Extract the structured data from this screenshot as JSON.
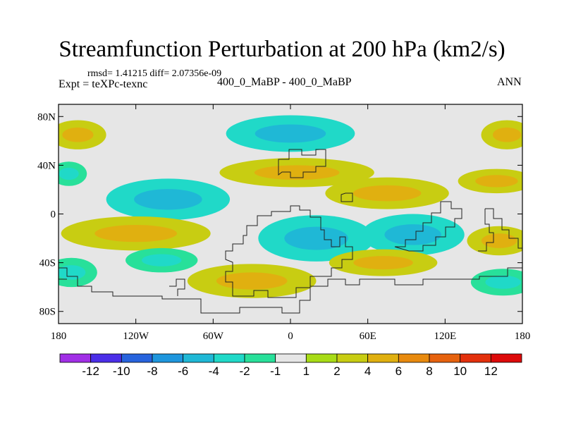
{
  "header": {
    "title": "Streamfunction Perturbation at 200 hPa (km2/s)",
    "stats": "rmsd= 1.41215 diff= 2.07356e-09",
    "expt": "Expt = teXPc-texnc",
    "case": "400_0_MaBP - 400_0_MaBP",
    "period": "ANN"
  },
  "chart_data": {
    "type": "heatmap",
    "title": "Streamfunction Perturbation at 200 hPa (km2/s)",
    "xlabel": "",
    "ylabel": "",
    "xlim": [
      -180,
      180
    ],
    "ylim": [
      -90,
      90
    ],
    "x_ticks": [
      {
        "value": -180,
        "label": "180"
      },
      {
        "value": -120,
        "label": "120W"
      },
      {
        "value": -60,
        "label": "60W"
      },
      {
        "value": 0,
        "label": "0"
      },
      {
        "value": 60,
        "label": "60E"
      },
      {
        "value": 120,
        "label": "120E"
      },
      {
        "value": 180,
        "label": "180"
      }
    ],
    "y_ticks": [
      {
        "value": 80,
        "label": "80N"
      },
      {
        "value": 40,
        "label": "40N"
      },
      {
        "value": 0,
        "label": "0"
      },
      {
        "value": -40,
        "label": "40S"
      },
      {
        "value": -80,
        "label": "80S"
      }
    ],
    "colorbar": {
      "levels": [
        "-12",
        "-10",
        "-8",
        "-6",
        "-4",
        "-2",
        "-1",
        "1",
        "2",
        "4",
        "6",
        "8",
        "10",
        "12"
      ],
      "colors": [
        "#a12fe6",
        "#4b2ee8",
        "#2763dd",
        "#1e96dd",
        "#1fb8d6",
        "#20d9c8",
        "#28e09a",
        "#e6e6e6",
        "#a8dc16",
        "#c8cd12",
        "#e0b010",
        "#e88a0e",
        "#e6620e",
        "#e3300c",
        "#dd0a0a"
      ]
    },
    "regions": [
      {
        "name": "positive-n-pacific-east",
        "value": 3,
        "lon": -165,
        "lat": 65,
        "rlon": 22,
        "rlat": 12
      },
      {
        "name": "negative-n-atlantic-high",
        "value": -3,
        "lon": 0,
        "lat": 66,
        "rlon": 50,
        "rlat": 15
      },
      {
        "name": "positive-n-pacific-west",
        "value": 3,
        "lon": 168,
        "lat": 65,
        "rlon": 20,
        "rlat": 12
      },
      {
        "name": "positive-eurasia-midlat",
        "value": 2,
        "lon": 5,
        "lat": 34,
        "rlon": 60,
        "rlat": 12
      },
      {
        "name": "positive-central-asia",
        "value": 2,
        "lon": 75,
        "lat": 17,
        "rlon": 48,
        "rlat": 13
      },
      {
        "name": "positive-n-pacific-midlat",
        "value": 2,
        "lon": 160,
        "lat": 27,
        "rlon": 30,
        "rlat": 10
      },
      {
        "name": "negative-n-pacific-dateline",
        "value": -2,
        "lon": -172,
        "lat": 33,
        "rlon": 14,
        "rlat": 10
      },
      {
        "name": "negative-n-america",
        "value": -3,
        "lon": -95,
        "lat": 12,
        "rlon": 48,
        "rlat": 17
      },
      {
        "name": "positive-s-pacific-tropics",
        "value": 3,
        "lon": -120,
        "lat": -16,
        "rlon": 58,
        "rlat": 14
      },
      {
        "name": "negative-s-atlantic-tropics",
        "value": -3,
        "lon": 20,
        "lat": -20,
        "rlon": 45,
        "rlat": 19
      },
      {
        "name": "negative-indian-ocean",
        "value": -3,
        "lon": 95,
        "lat": -17,
        "rlon": 40,
        "rlat": 17
      },
      {
        "name": "positive-s-pacific-east",
        "value": 2,
        "lon": 162,
        "lat": -22,
        "rlon": 25,
        "rlat": 12
      },
      {
        "name": "negative-s-pacific-midlat",
        "value": -2,
        "lon": -100,
        "lat": -38,
        "rlon": 28,
        "rlat": 10
      },
      {
        "name": "negative-s-pacific-west",
        "value": -2,
        "lon": -170,
        "lat": -48,
        "rlon": 20,
        "rlat": 12
      },
      {
        "name": "positive-s-atlantic-midlat",
        "value": 3,
        "lon": -30,
        "lat": -55,
        "rlon": 50,
        "rlat": 14
      },
      {
        "name": "positive-indian-ocean-south",
        "value": 2,
        "lon": 72,
        "lat": -40,
        "rlon": 42,
        "rlat": 11
      },
      {
        "name": "negative-s-indian-east",
        "value": -2,
        "lon": 165,
        "lat": -56,
        "rlon": 25,
        "rlat": 11
      }
    ]
  }
}
